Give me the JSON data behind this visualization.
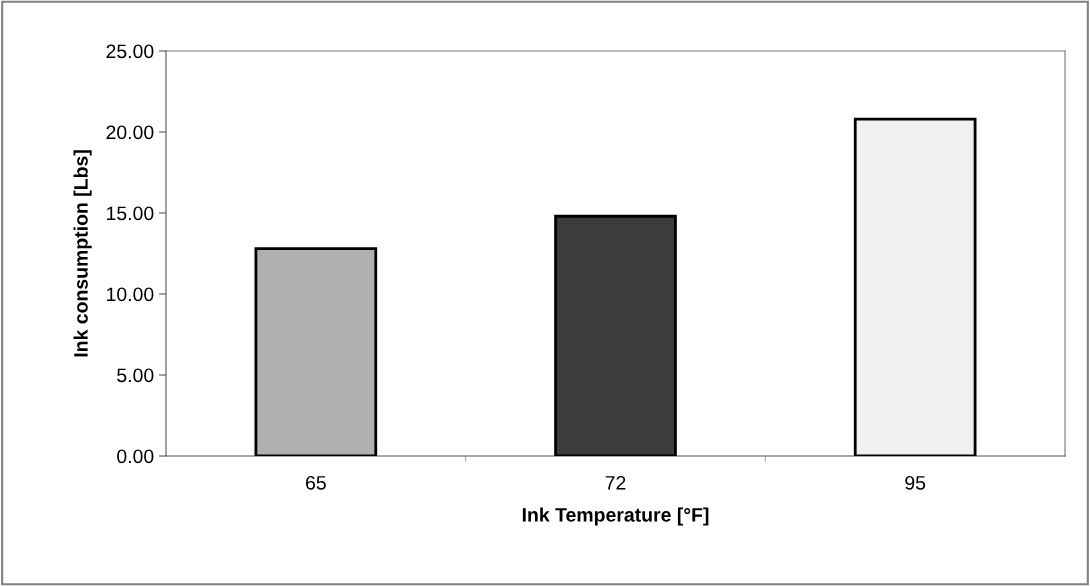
{
  "chart_data": {
    "type": "bar",
    "xlabel": "Ink Temperature [°F]",
    "ylabel": "Ink consumption [Lbs]",
    "categories": [
      "65",
      "72",
      "95"
    ],
    "values": [
      12.8,
      14.8,
      20.8
    ],
    "colors": [
      "#b0b0b0",
      "#3c3c3c",
      "#f0f0f0"
    ],
    "ylim": [
      0,
      25
    ],
    "yticks": [
      {
        "value": 0,
        "label": "0.00"
      },
      {
        "value": 5,
        "label": "5.00"
      },
      {
        "value": 10,
        "label": "10.00"
      },
      {
        "value": 15,
        "label": "15.00"
      },
      {
        "value": 20,
        "label": "20.00"
      },
      {
        "value": 25,
        "label": "25.00"
      }
    ],
    "grid": false,
    "legend": false
  }
}
